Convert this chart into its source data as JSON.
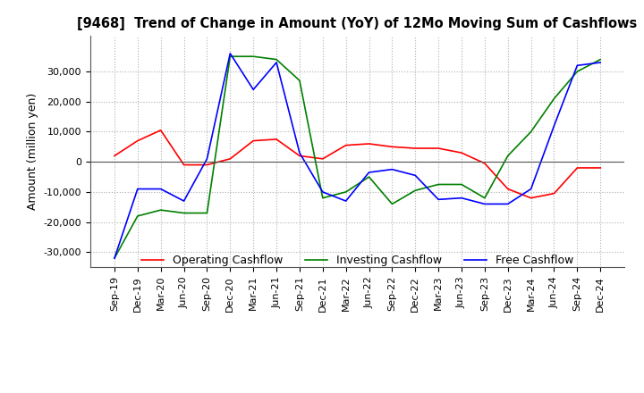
{
  "title": "[9468]  Trend of Change in Amount (YoY) of 12Mo Moving Sum of Cashflows",
  "ylabel": "Amount (million yen)",
  "background_color": "#ffffff",
  "grid_color": "#b0b0b0",
  "x_labels": [
    "Sep-19",
    "Dec-19",
    "Mar-20",
    "Jun-20",
    "Sep-20",
    "Dec-20",
    "Mar-21",
    "Jun-21",
    "Sep-21",
    "Dec-21",
    "Mar-22",
    "Jun-22",
    "Sep-22",
    "Dec-22",
    "Mar-23",
    "Jun-23",
    "Sep-23",
    "Dec-23",
    "Mar-24",
    "Jun-24",
    "Sep-24",
    "Dec-24"
  ],
  "operating_cashflow": [
    2000,
    7000,
    10500,
    -1000,
    -1000,
    1000,
    7000,
    7500,
    2000,
    1000,
    5500,
    6000,
    5000,
    4500,
    4500,
    3000,
    -500,
    -9000,
    -12000,
    -10500,
    -2000,
    -2000
  ],
  "investing_cashflow": [
    -32000,
    -18000,
    -16000,
    -17000,
    -17000,
    35000,
    35000,
    34000,
    27000,
    -12000,
    -10000,
    -5000,
    -14000,
    -9500,
    -7500,
    -7500,
    -12000,
    2000,
    10000,
    21000,
    30000,
    34000
  ],
  "free_cashflow": [
    -32000,
    -9000,
    -9000,
    -13000,
    1000,
    36000,
    24000,
    33000,
    3000,
    -10000,
    -13000,
    -3500,
    -2500,
    -4500,
    -12500,
    -12000,
    -14000,
    -14000,
    -9000,
    12000,
    32000,
    33000
  ],
  "op_color": "#ff0000",
  "inv_color": "#008000",
  "free_color": "#0000ff",
  "ylim": [
    -35000,
    42000
  ],
  "yticks": [
    -30000,
    -20000,
    -10000,
    0,
    10000,
    20000,
    30000
  ]
}
